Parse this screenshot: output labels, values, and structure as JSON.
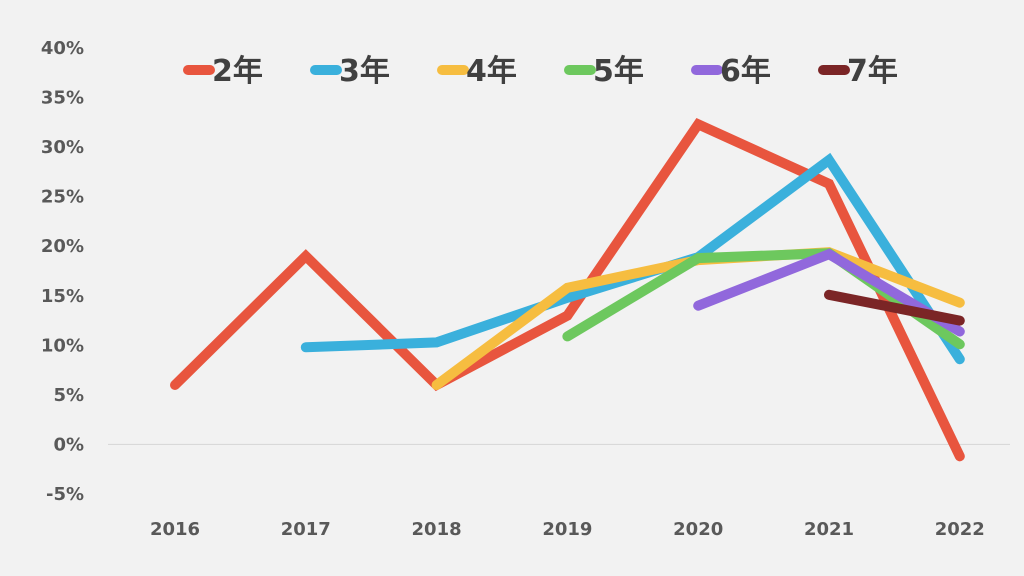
{
  "chart_data": {
    "type": "line",
    "title": "",
    "xlabel": "",
    "ylabel": "",
    "x": [
      "2016",
      "2017",
      "2018",
      "2019",
      "2020",
      "2021",
      "2022"
    ],
    "ylim": [
      -5,
      40
    ],
    "yticks": [
      {
        "value": 40,
        "label": "40%"
      },
      {
        "value": 35,
        "label": "35%"
      },
      {
        "value": 30,
        "label": "30%"
      },
      {
        "value": 25,
        "label": "25%"
      },
      {
        "value": 20,
        "label": "20%"
      },
      {
        "value": 15,
        "label": "15%"
      },
      {
        "value": 10,
        "label": "10%"
      },
      {
        "value": 5,
        "label": "5%"
      },
      {
        "value": 0,
        "label": "0%"
      },
      {
        "value": -5,
        "label": "-5%"
      }
    ],
    "grid": false,
    "zero_line": true,
    "legend_position": "top",
    "series": [
      {
        "name": "2年",
        "color": "#e8553e",
        "values": [
          6.0,
          19.0,
          6.0,
          13.0,
          32.3,
          26.3,
          -1.2
        ]
      },
      {
        "name": "3年",
        "color": "#3ab0dc",
        "values": [
          null,
          9.8,
          10.3,
          14.8,
          18.9,
          28.7,
          8.6
        ]
      },
      {
        "name": "4年",
        "color": "#f6bd40",
        "values": [
          null,
          null,
          6.0,
          15.8,
          18.6,
          19.4,
          14.3
        ]
      },
      {
        "name": "5年",
        "color": "#6dc85e",
        "values": [
          null,
          null,
          null,
          10.9,
          18.8,
          19.3,
          10.1
        ]
      },
      {
        "name": "6年",
        "color": "#9168dc",
        "values": [
          null,
          null,
          null,
          null,
          14.0,
          19.2,
          11.4
        ]
      },
      {
        "name": "7年",
        "color": "#7b2526",
        "values": [
          null,
          null,
          null,
          null,
          null,
          15.1,
          12.5
        ]
      }
    ]
  }
}
